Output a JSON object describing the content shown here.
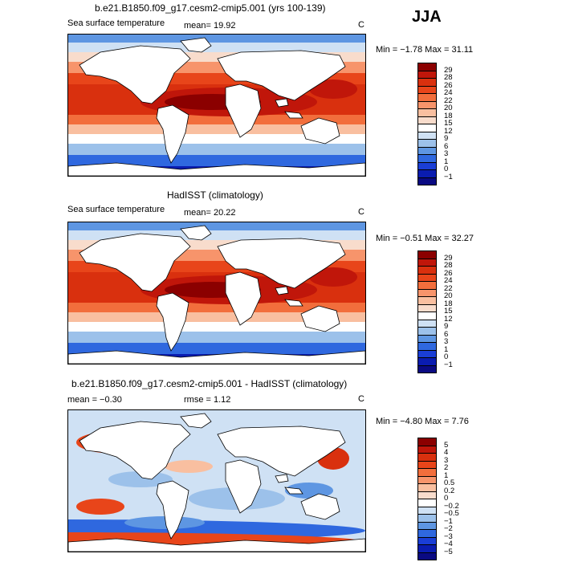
{
  "season": "JJA",
  "panels": [
    {
      "title": "b.e21.B1850.f09_g17.cesm2-cmip5.001 (yrs 100-139)",
      "variable": "Sea surface temperature",
      "stat1": "mean=  19.92",
      "stat2": "",
      "units": "C",
      "minmax": "Min = −1.78 Max =  31.11",
      "colorbar_labels": [
        "29",
        "28",
        "26",
        "24",
        "22",
        "20",
        "18",
        "15",
        "12",
        "9",
        "6",
        "3",
        "1",
        "0",
        "−1"
      ],
      "colorbar_colors": [
        "#8b0000",
        "#c0160a",
        "#d9300e",
        "#e8451a",
        "#f26e3c",
        "#f7946b",
        "#f9bfa0",
        "#f8dccc",
        "#ffffff",
        "#cfe1f4",
        "#9cc1ea",
        "#5e96e2",
        "#2f68df",
        "#1a3ed6",
        "#0a1cb0",
        "#0a0a82"
      ]
    },
    {
      "title": "HadISST (climatology)",
      "variable": "Sea surface temperature",
      "stat1": "mean=  20.22",
      "stat2": "",
      "units": "C",
      "minmax": "Min = −0.51 Max =  32.27",
      "colorbar_labels": [
        "29",
        "28",
        "26",
        "24",
        "22",
        "20",
        "18",
        "15",
        "12",
        "9",
        "6",
        "3",
        "1",
        "0",
        "−1"
      ],
      "colorbar_colors": [
        "#8b0000",
        "#c0160a",
        "#d9300e",
        "#e8451a",
        "#f26e3c",
        "#f7946b",
        "#f9bfa0",
        "#f8dccc",
        "#ffffff",
        "#cfe1f4",
        "#9cc1ea",
        "#5e96e2",
        "#2f68df",
        "#1a3ed6",
        "#0a1cb0",
        "#0a0a82"
      ]
    },
    {
      "title": "b.e21.B1850.f09_g17.cesm2-cmip5.001 - HadISST (climatology)",
      "variable": "",
      "stat1": "mean =  −0.30",
      "stat2": "rmse =   1.12",
      "units": "C",
      "minmax": "Min = −4.80 Max =   7.76",
      "colorbar_labels": [
        "5",
        "4",
        "3",
        "2",
        "1",
        "0.5",
        "0.2",
        "0",
        "−0.2",
        "−0.5",
        "−1",
        "−2",
        "−3",
        "−4",
        "−5"
      ],
      "colorbar_colors": [
        "#8b0000",
        "#c0160a",
        "#d9300e",
        "#e8451a",
        "#f26e3c",
        "#f7946b",
        "#f9bfa0",
        "#f8dccc",
        "#ffffff",
        "#cfe1f4",
        "#9cc1ea",
        "#5e96e2",
        "#2f68df",
        "#1a3ed6",
        "#0a1cb0",
        "#0a0a82"
      ]
    }
  ]
}
